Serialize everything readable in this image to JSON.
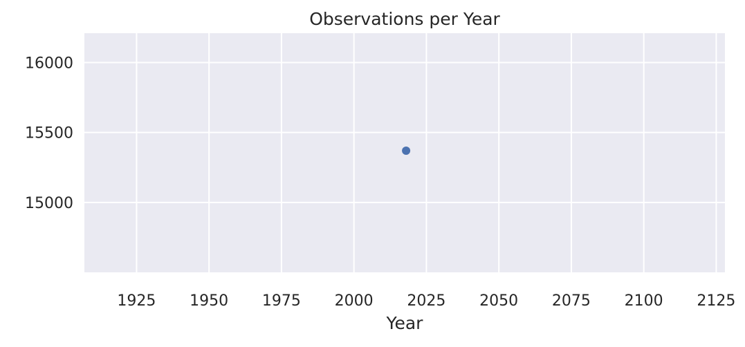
{
  "chart_data": {
    "type": "scatter",
    "title": "Observations per Year",
    "xlabel": "Year",
    "ylabel": "",
    "xlim": [
      1907,
      2128
    ],
    "ylim": [
      14500,
      16210
    ],
    "x_ticks": [
      1925,
      1950,
      1975,
      2000,
      2025,
      2050,
      2075,
      2100,
      2125
    ],
    "y_ticks": [
      15000,
      15500,
      16000
    ],
    "grid": true,
    "series": [
      {
        "points": [
          {
            "x": 2018,
            "y": 15370
          }
        ]
      }
    ],
    "colors": {
      "plot_background": "#eaeaf2",
      "grid": "#ffffff",
      "marker": "#4c72b0",
      "text": "#262626"
    }
  }
}
